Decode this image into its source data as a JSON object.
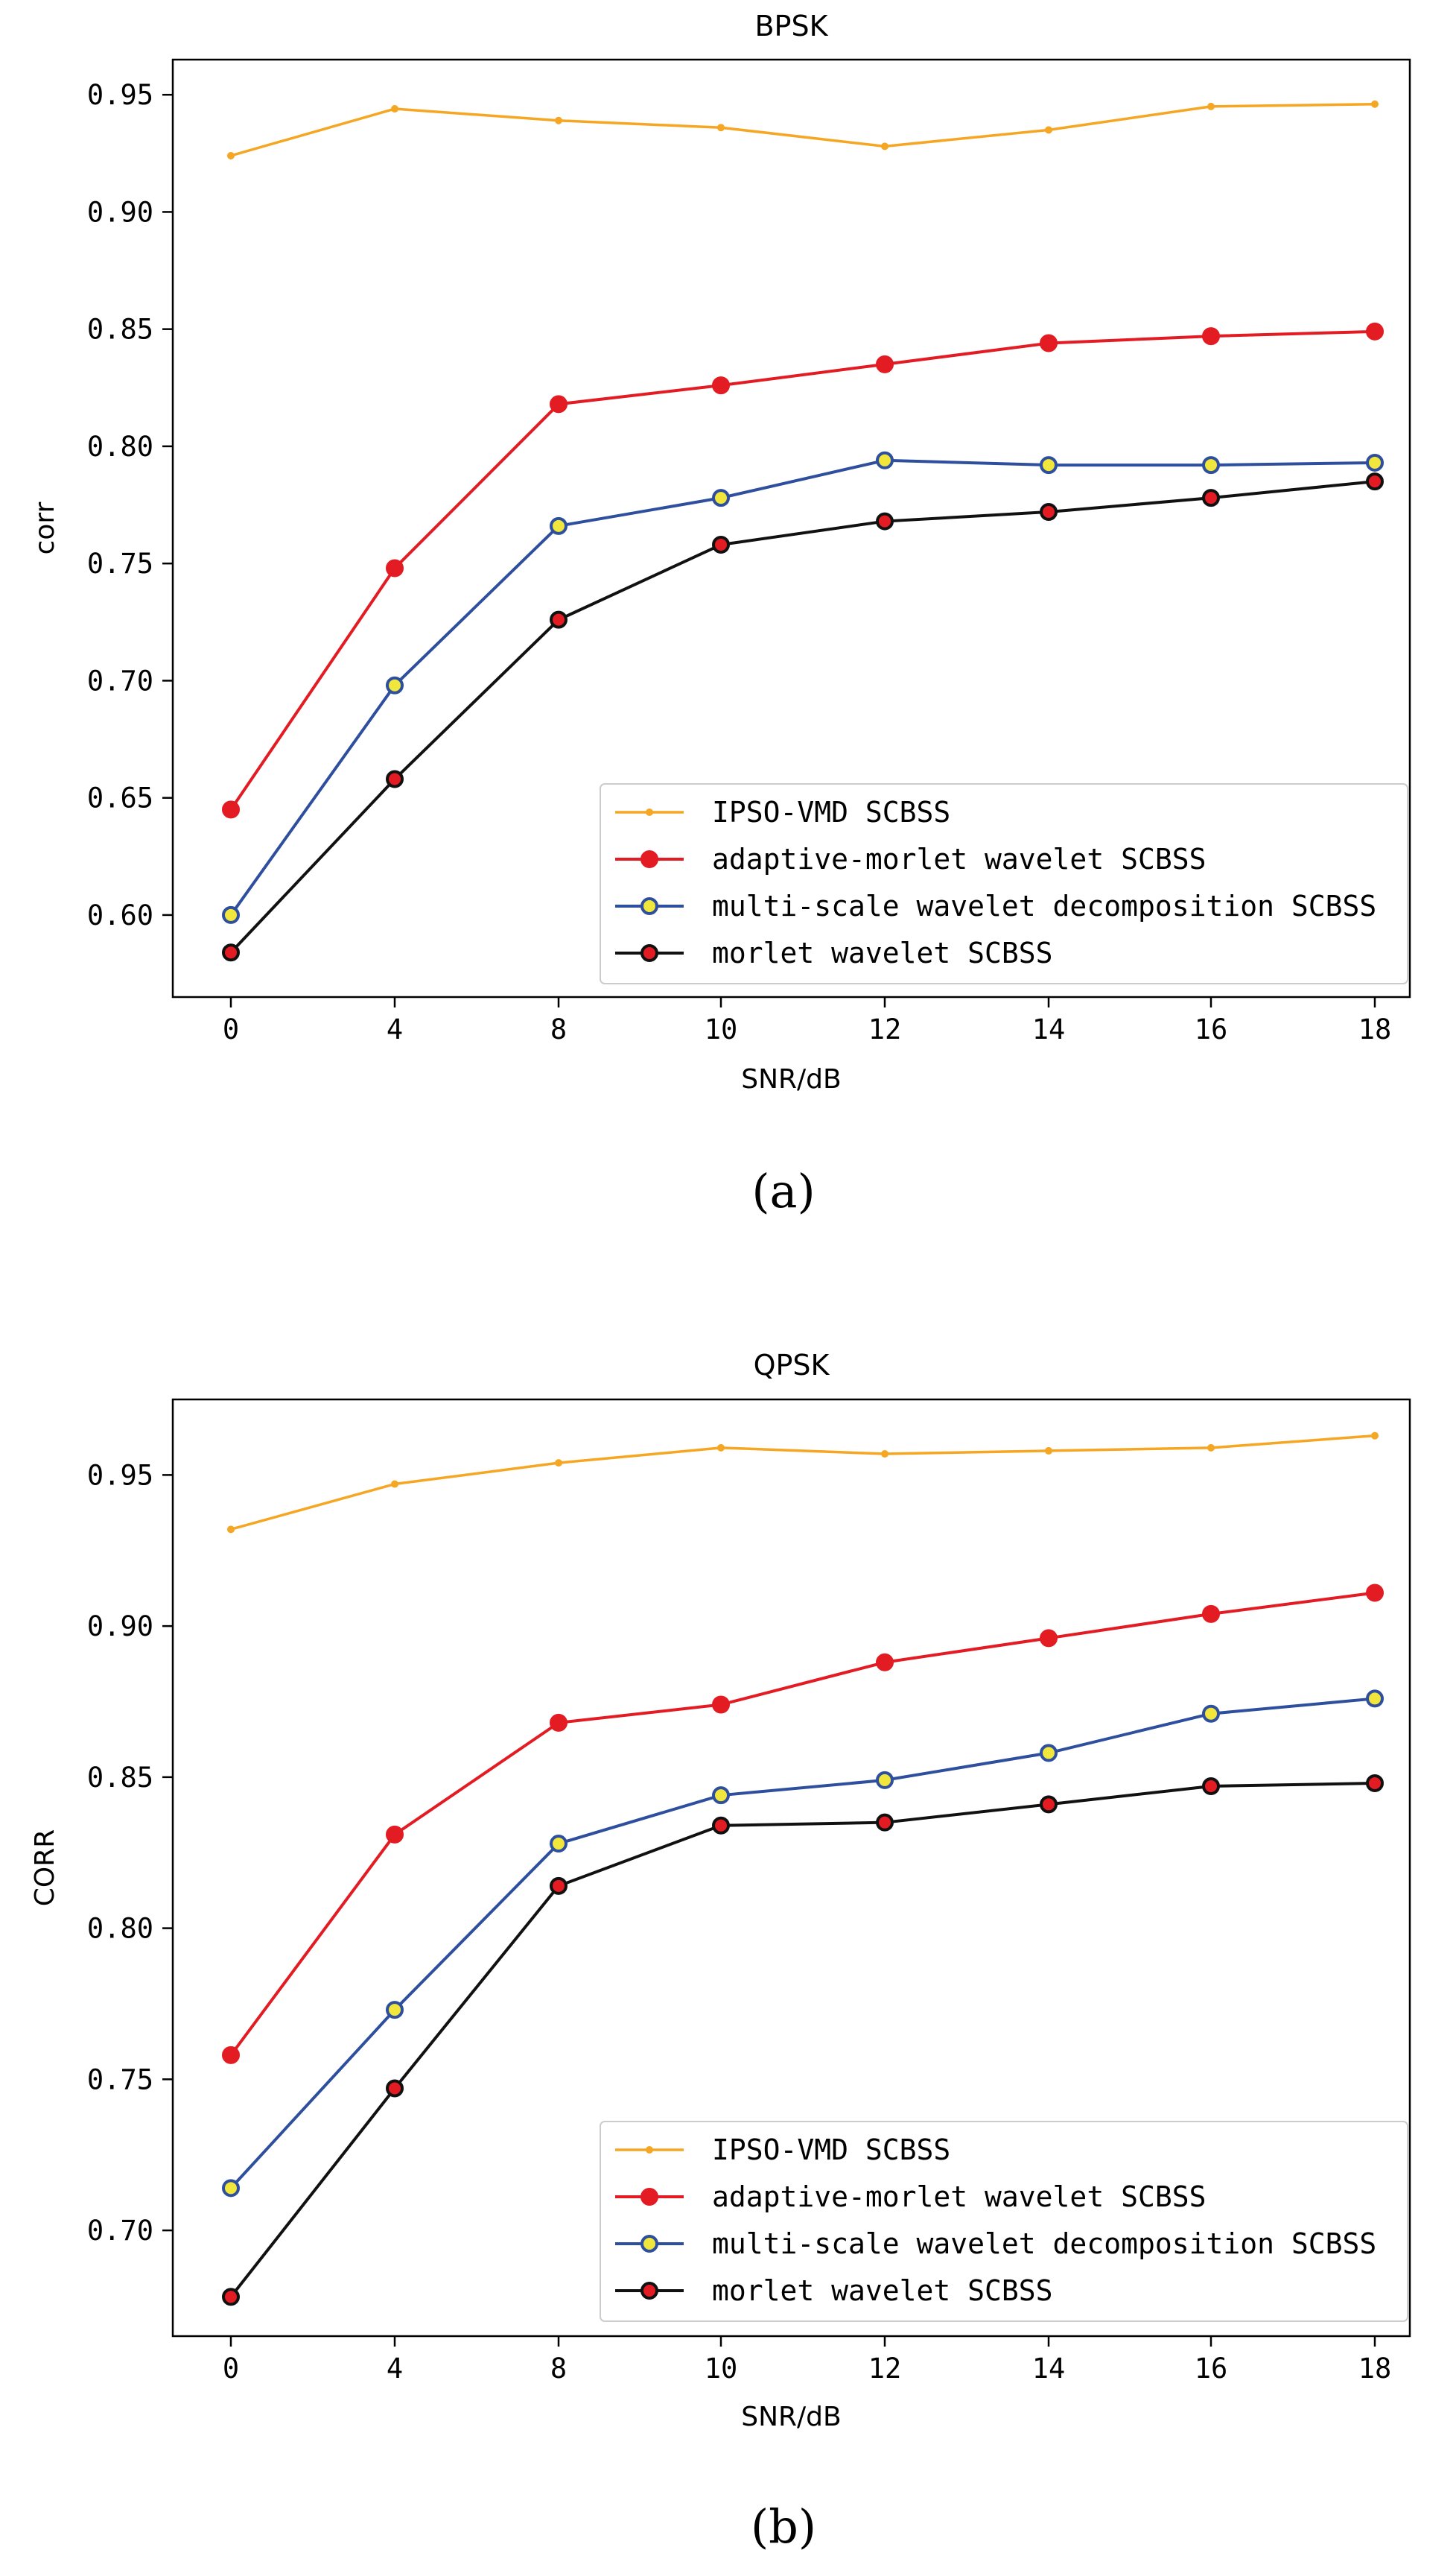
{
  "chart_data": [
    {
      "type": "line",
      "title": "BPSK",
      "xlabel": "SNR/dB",
      "ylabel": "corr",
      "caption": "(a)",
      "categories": [
        "0",
        "4",
        "8",
        "10",
        "12",
        "14",
        "16",
        "18"
      ],
      "ylim": [
        0.565,
        0.965
      ],
      "yticks": [
        "0.60",
        "0.65",
        "0.70",
        "0.75",
        "0.80",
        "0.85",
        "0.90",
        "0.95"
      ],
      "legend_position": "lower right",
      "series": [
        {
          "name": "IPSO-VMD SCBSS",
          "color": "#f5a623",
          "marker": "dot",
          "marker_face": "#f5a623",
          "values": [
            0.924,
            0.944,
            0.939,
            0.936,
            0.928,
            0.935,
            0.945,
            0.946
          ]
        },
        {
          "name": "adaptive-morlet wavelet SCBSS",
          "color": "#e31b23",
          "marker": "circle",
          "marker_face": "#e31b23",
          "values": [
            0.645,
            0.748,
            0.818,
            0.826,
            0.835,
            0.844,
            0.847,
            0.849
          ]
        },
        {
          "name": "multi-scale wavelet decomposition SCBSS",
          "color": "#2e4f9e",
          "marker": "circle",
          "marker_face": "#f0e63c",
          "values": [
            0.6,
            0.698,
            0.766,
            0.778,
            0.794,
            0.792,
            0.792,
            0.793
          ]
        },
        {
          "name": "morlet wavelet SCBSS",
          "color": "#111111",
          "marker": "circle",
          "marker_face": "#e31b23",
          "values": [
            0.584,
            0.658,
            0.726,
            0.758,
            0.768,
            0.772,
            0.778,
            0.785
          ]
        }
      ]
    },
    {
      "type": "line",
      "title": "QPSK",
      "xlabel": "SNR/dB",
      "ylabel": "CORR",
      "caption": "(b)",
      "categories": [
        "0",
        "4",
        "8",
        "10",
        "12",
        "14",
        "16",
        "18"
      ],
      "ylim": [
        0.665,
        0.975
      ],
      "yticks": [
        "0.70",
        "0.75",
        "0.80",
        "0.85",
        "0.90",
        "0.95"
      ],
      "legend_position": "lower right",
      "series": [
        {
          "name": "IPSO-VMD SCBSS",
          "color": "#f5a623",
          "marker": "dot",
          "marker_face": "#f5a623",
          "values": [
            0.932,
            0.947,
            0.954,
            0.959,
            0.957,
            0.958,
            0.959,
            0.963
          ]
        },
        {
          "name": "adaptive-morlet wavelet SCBSS",
          "color": "#e31b23",
          "marker": "circle",
          "marker_face": "#e31b23",
          "values": [
            0.758,
            0.831,
            0.868,
            0.874,
            0.888,
            0.896,
            0.904,
            0.911
          ]
        },
        {
          "name": "multi-scale wavelet decomposition SCBSS",
          "color": "#2e4f9e",
          "marker": "circle",
          "marker_face": "#f0e63c",
          "values": [
            0.714,
            0.773,
            0.828,
            0.844,
            0.849,
            0.858,
            0.871,
            0.876
          ]
        },
        {
          "name": "morlet wavelet SCBSS",
          "color": "#111111",
          "marker": "circle",
          "marker_face": "#e31b23",
          "values": [
            0.678,
            0.747,
            0.814,
            0.834,
            0.835,
            0.841,
            0.847,
            0.848
          ]
        }
      ]
    }
  ]
}
